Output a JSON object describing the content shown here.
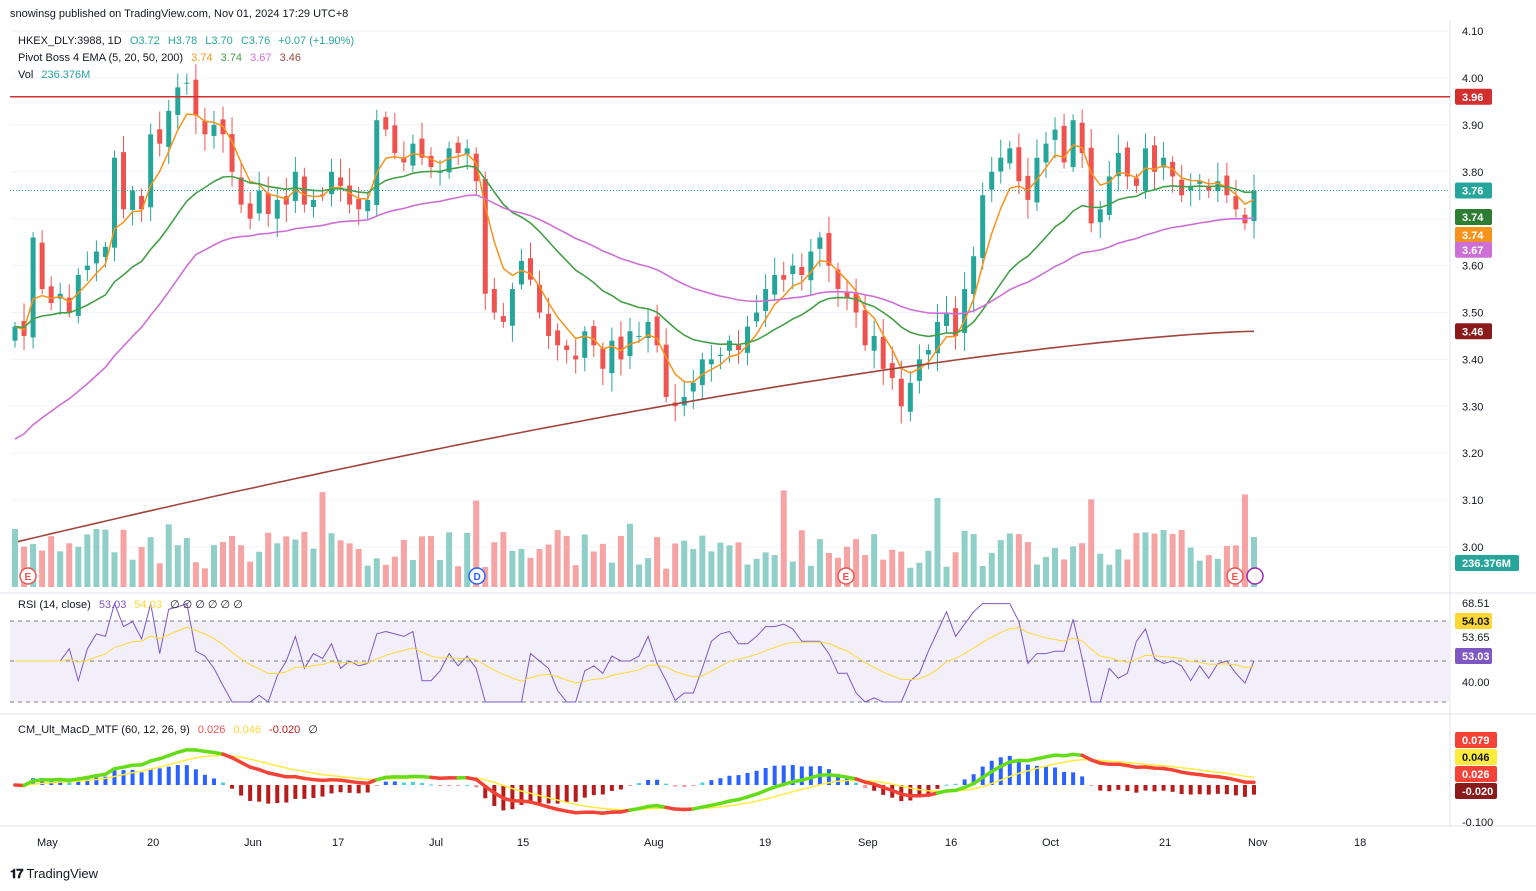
{
  "header": {
    "publisher": "snowinsg published on TradingView.com, Nov 01, 2024 17:29 UTC+8"
  },
  "legend": {
    "symbol": "HKEX_DLY:3988, 1D",
    "ohlc": {
      "o": "O3.72",
      "h": "H3.78",
      "l": "L3.70",
      "c": "C3.76",
      "chg": "+0.07 (+1.90%)"
    },
    "ema_title": "Pivot Boss 4 EMA (5, 20, 50, 200)",
    "ema_values": [
      "3.74",
      "3.74",
      "3.67",
      "3.46"
    ],
    "vol_title": "Vol",
    "vol_value": "236.376M"
  },
  "rsi_legend": {
    "title": "RSI (14, close)",
    "v1": "53.03",
    "v2": "54.03",
    "zeros": "∅ ∅ ∅ ∅ ∅ ∅"
  },
  "macd_legend": {
    "title": "CM_Ult_MacD_MTF (60, 12, 26, 9)",
    "v1": "0.026",
    "v2": "0.046",
    "v3": "-0.020",
    "z": "∅"
  },
  "colors": {
    "up": "#26a69a",
    "down": "#ef5350",
    "ema5": "#f7931a",
    "ema20": "#43a047",
    "ema50": "#ce6fd6",
    "ema200": "#a0453a",
    "resistance": "#d32f2f",
    "rsi": "#7e57c2",
    "rsi_ma": "#fdd835"
  },
  "price_axis": {
    "ticks": [
      "4.10",
      "4.00",
      "3.90",
      "3.80",
      "3.70",
      "3.60",
      "3.50",
      "3.40",
      "3.30",
      "3.20",
      "3.10",
      "3.00"
    ]
  },
  "price_labels": {
    "resistance": "3.96",
    "last": "3.76",
    "ema20": "3.74",
    "ema5": "3.74",
    "ema50": "3.67",
    "ema200": "3.46",
    "volume": "236.376M"
  },
  "rsi_axis": {
    "ticks": [
      "68.51",
      "53.65",
      "40.00"
    ],
    "labels": {
      "ma": "54.03",
      "rsi": "53.03"
    }
  },
  "macd_axis": {
    "ticks": [
      "-0.100"
    ],
    "labels": {
      "a": "0.079",
      "b": "0.046",
      "c": "0.026",
      "d": "-0.020"
    }
  },
  "time_axis": {
    "ticks": [
      "May",
      "20",
      "Jun",
      "17",
      "Jul",
      "15",
      "Aug",
      "19",
      "Sep",
      "16",
      "Oct",
      "21",
      "Nov",
      "18"
    ]
  },
  "event_markers": [
    "E",
    "D",
    "E",
    "E"
  ],
  "footer": {
    "brand": "TradingView"
  },
  "chart_data": {
    "type": "candlestick",
    "resistance_level": 3.96,
    "last_close": 3.76,
    "approx_closes": [
      3.47,
      3.45,
      3.66,
      3.55,
      3.52,
      3.54,
      3.5,
      3.58,
      3.6,
      3.63,
      3.64,
      3.83,
      3.72,
      3.76,
      3.72,
      3.88,
      3.86,
      3.93,
      3.98,
      3.99,
      3.92,
      3.88,
      3.9,
      3.88,
      3.8,
      3.73,
      3.7,
      3.76,
      3.71,
      3.74,
      3.73,
      3.8,
      3.73,
      3.74,
      3.75,
      3.8,
      3.77,
      3.73,
      3.72,
      3.74,
      3.91,
      3.89,
      3.84,
      3.82,
      3.86,
      3.83,
      3.81,
      3.8,
      3.85,
      3.84,
      3.85,
      3.78,
      3.54,
      3.5,
      3.48,
      3.55,
      3.61,
      3.57,
      3.5,
      3.45,
      3.43,
      3.42,
      3.4,
      3.46,
      3.43,
      3.38,
      3.44,
      3.4,
      3.46,
      3.45,
      3.48,
      3.43,
      3.32,
      3.3,
      3.32,
      3.35,
      3.4,
      3.4,
      3.41,
      3.44,
      3.42,
      3.47,
      3.5,
      3.55,
      3.58,
      3.57,
      3.6,
      3.58,
      3.63,
      3.66,
      3.6,
      3.55,
      3.53,
      3.5,
      3.43,
      3.45,
      3.38,
      3.36,
      3.3,
      3.35,
      3.4,
      3.42,
      3.48,
      3.5,
      3.45,
      3.55,
      3.62,
      3.75,
      3.8,
      3.83,
      3.85,
      3.78,
      3.74,
      3.83,
      3.86,
      3.89,
      3.82,
      3.91,
      3.84,
      3.69,
      3.72,
      3.79,
      3.84,
      3.79,
      3.77,
      3.85,
      3.8,
      3.83,
      3.79,
      3.75,
      3.77,
      3.78,
      3.76,
      3.78,
      3.75,
      3.72,
      3.69,
      3.76
    ],
    "volume_level_M": 236.376,
    "rsi": 53.03,
    "rsi_ma": 54.03,
    "macd": {
      "macd": 0.026,
      "signal": 0.046,
      "hist": -0.02
    }
  }
}
